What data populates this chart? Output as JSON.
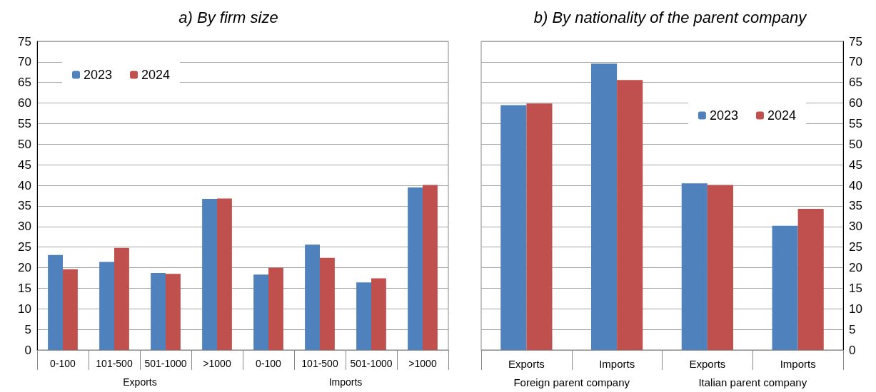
{
  "chart_data": [
    {
      "type": "bar",
      "title": "a) By firm size",
      "categories": [
        "0-100",
        "101-500",
        "501-1000",
        ">1000",
        "0-100",
        "101-500",
        "501-1000",
        ">1000"
      ],
      "annotations": [
        "Exports",
        "Imports"
      ],
      "series": [
        {
          "name": "2023",
          "color": "#4f81bd",
          "values": [
            23.1,
            21.4,
            18.7,
            36.7,
            18.3,
            25.6,
            16.4,
            39.5
          ]
        },
        {
          "name": "2024",
          "color": "#c0504d",
          "values": [
            19.6,
            24.8,
            18.5,
            36.8,
            20.0,
            22.4,
            17.4,
            40.1
          ]
        }
      ],
      "ylim": [
        0,
        75
      ],
      "yticks": [
        0,
        5,
        10,
        15,
        20,
        25,
        30,
        35,
        40,
        45,
        50,
        55,
        60,
        65,
        70,
        75
      ],
      "grid": "y",
      "legend": "top left"
    },
    {
      "type": "bar",
      "title": "b) By nationality of the parent company",
      "categories": [
        "Exports",
        "Imports",
        "Exports",
        "Imports"
      ],
      "annotations": [
        "Foreign parent company",
        "Italian parent company"
      ],
      "series": [
        {
          "name": "2023",
          "color": "#4f81bd",
          "axis": "y2",
          "values": [
            59.5,
            69.6,
            40.5,
            30.2
          ]
        },
        {
          "name": "2024",
          "color": "#c0504d",
          "axis": "y2",
          "values": [
            59.9,
            65.6,
            40.1,
            34.3
          ]
        }
      ],
      "y2lim": [
        0,
        75
      ],
      "y2ticks": [
        0,
        5,
        10,
        15,
        20,
        25,
        30,
        35,
        40,
        45,
        50,
        55,
        60,
        65,
        70,
        75
      ],
      "grid": "y",
      "legend": "top right"
    }
  ]
}
